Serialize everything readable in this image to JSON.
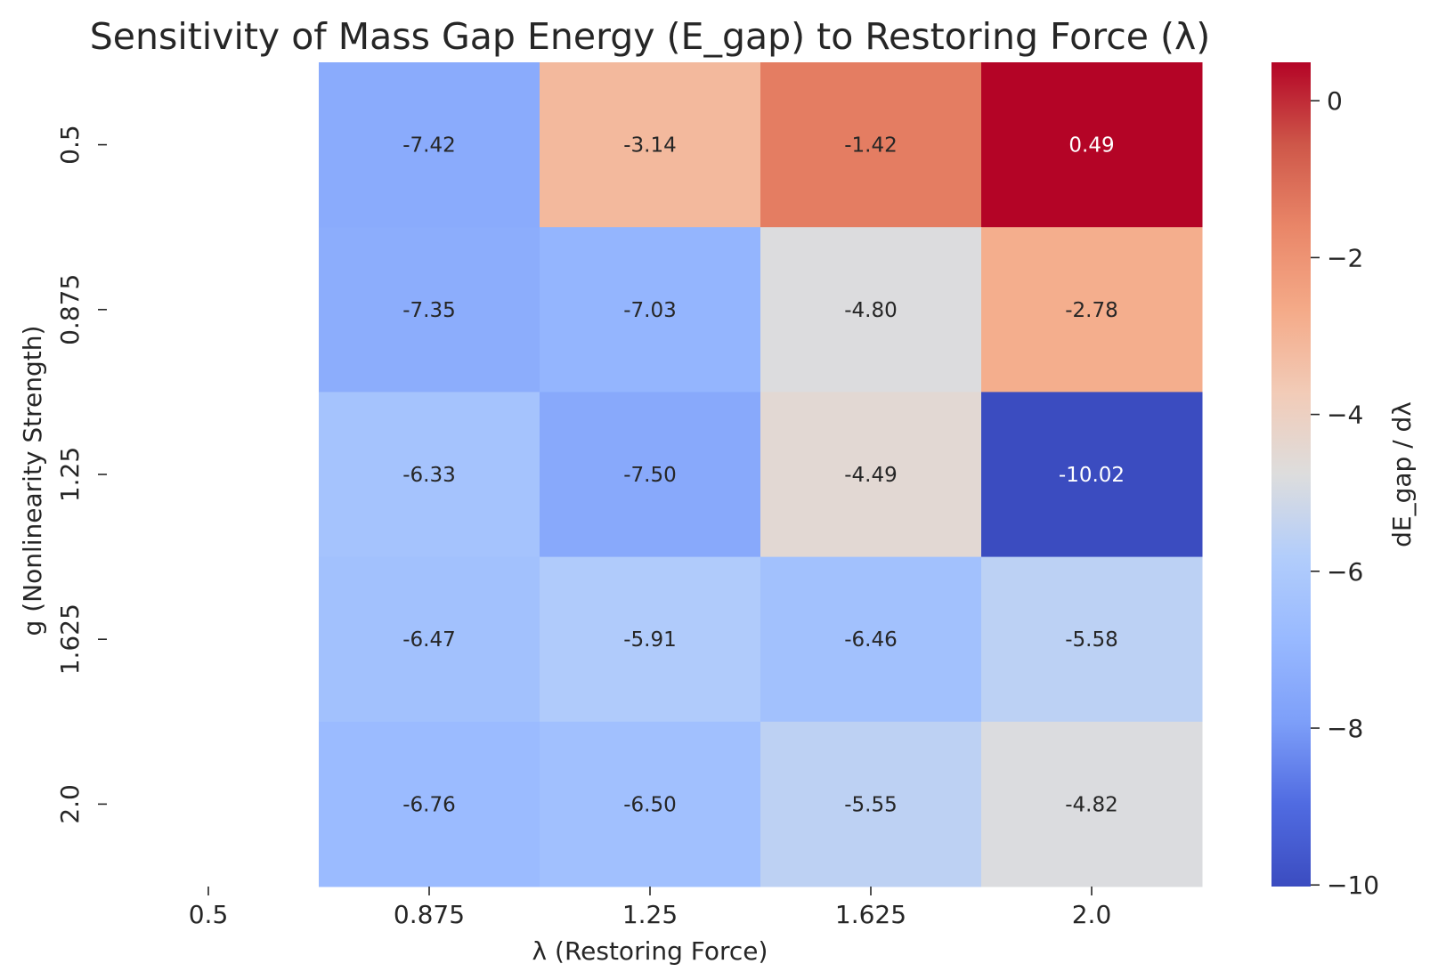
{
  "chart_data": {
    "type": "heatmap",
    "title": "Sensitivity of Mass Gap Energy (E_gap) to Restoring Force (λ)",
    "xlabel": "λ (Restoring Force)",
    "ylabel": "g (Nonlinearity Strength)",
    "x_ticks": [
      "0.5",
      "0.875",
      "1.25",
      "1.625",
      "2.0"
    ],
    "y_ticks": [
      "0.5",
      "0.875",
      "1.25",
      "1.625",
      "2.0"
    ],
    "columns": [
      "0.875",
      "1.25",
      "1.625",
      "2.0"
    ],
    "rows": [
      "0.5",
      "0.875",
      "1.25",
      "1.625",
      "2.0"
    ],
    "values": [
      [
        -7.42,
        -3.14,
        -1.42,
        0.49
      ],
      [
        -7.35,
        -7.03,
        -4.8,
        -2.78
      ],
      [
        -6.33,
        -7.5,
        -4.49,
        -10.02
      ],
      [
        -6.47,
        -5.91,
        -6.46,
        -5.58
      ],
      [
        -6.76,
        -6.5,
        -5.55,
        -4.82
      ]
    ],
    "value_labels": [
      [
        "-7.42",
        "-3.14",
        "-1.42",
        "0.49"
      ],
      [
        "-7.35",
        "-7.03",
        "-4.80",
        "-2.78"
      ],
      [
        "-6.33",
        "-7.50",
        "-4.49",
        "-10.02"
      ],
      [
        "-6.47",
        "-5.91",
        "-6.46",
        "-5.58"
      ],
      [
        "-6.76",
        "-6.50",
        "-5.55",
        "-4.82"
      ]
    ],
    "colormap": "coolwarm",
    "vmin": -10.02,
    "vmax": 0.49,
    "colorbar": {
      "label": "dE_gap / dλ",
      "ticks": [
        0,
        -2,
        -4,
        -6,
        -8,
        -10
      ],
      "tick_labels": [
        "0",
        "−2",
        "−4",
        "−6",
        "−8",
        "−10"
      ]
    },
    "grid": false,
    "legend": "colorbar-right"
  }
}
